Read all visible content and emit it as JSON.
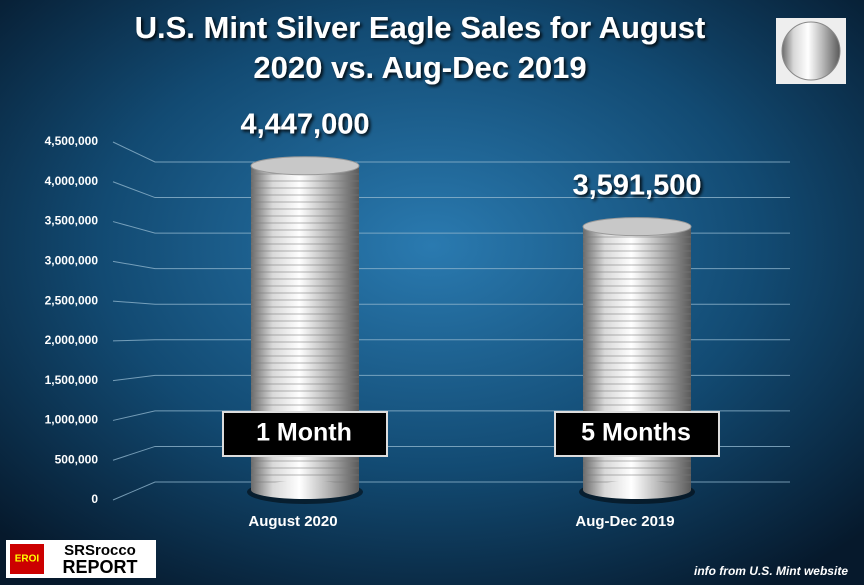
{
  "chart_data": {
    "type": "bar",
    "title": [
      "U.S. Mint Silver Eagle Sales for August",
      "2020 vs. Aug-Dec 2019"
    ],
    "categories": [
      "August 2020",
      "Aug-Dec 2019"
    ],
    "values": [
      4447000,
      3591500
    ],
    "value_labels": [
      "4,447,000",
      "3,591,500"
    ],
    "color": "#c8c8c8",
    "annotations": [
      "1 Month",
      "5 Months"
    ],
    "ylim": [
      0,
      4500000
    ],
    "yticks": [
      0,
      {
        "value": 500000,
        "label": "500,000"
      },
      {
        "value": 1000000,
        "label": "1,000,000"
      },
      {
        "value": 1500000,
        "label": "1,500,000"
      },
      {
        "value": 2000000,
        "label": "2,000,000"
      },
      {
        "value": 2500000,
        "label": "2,500,000"
      },
      {
        "value": 3000000,
        "label": "3,000,000"
      },
      {
        "value": 3500000,
        "label": "3,500,000"
      },
      {
        "value": 4000000,
        "label": "4,000,000"
      },
      {
        "value": 4500000,
        "label": "4,500,000"
      }
    ],
    "grid": true,
    "source": "info from U.S. Mint website"
  },
  "logo": {
    "badge": "EROI",
    "line1": "SRSrocco",
    "line2": "REPORT"
  }
}
